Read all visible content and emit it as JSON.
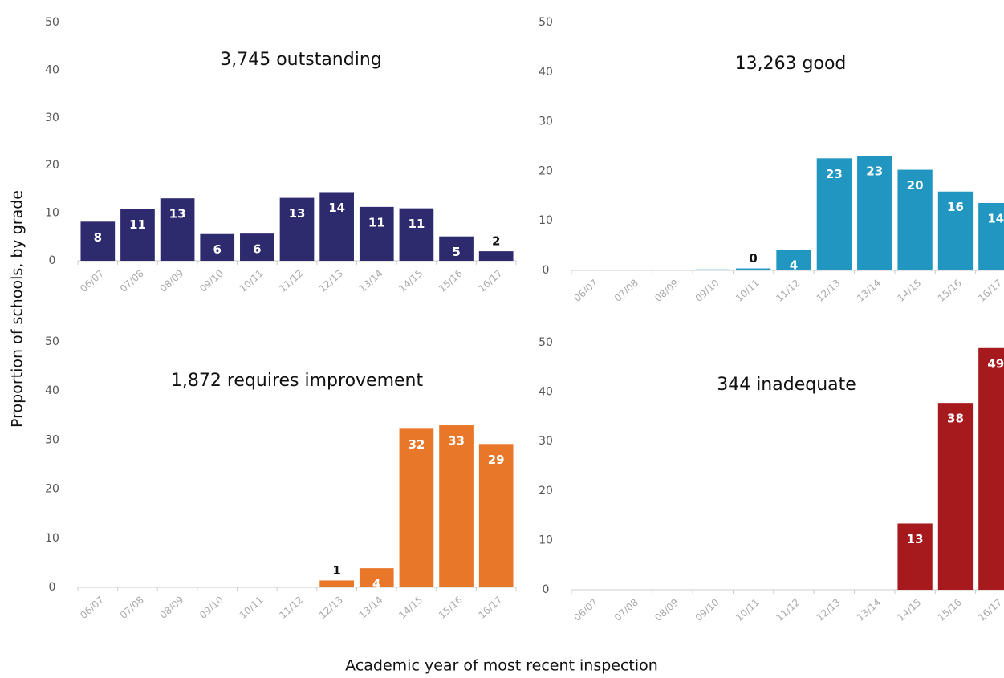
{
  "ylabel": "Proportion of schools, by grade",
  "xlabel": "Academic year of most recent inspection",
  "chart_data": [
    {
      "type": "bar",
      "title": "3,745 outstanding",
      "color": "#2d2a6e",
      "categories": [
        "06/07",
        "07/08",
        "08/09",
        "09/10",
        "10/11",
        "11/12",
        "12/13",
        "13/14",
        "14/15",
        "15/16",
        "16/17"
      ],
      "values": [
        8.2,
        10.9,
        13.1,
        5.6,
        5.7,
        13.2,
        14.4,
        11.3,
        11.0,
        5.1,
        2.0
      ],
      "value_labels": [
        "8",
        "11",
        "13",
        "6",
        "6",
        "13",
        "14",
        "11",
        "11",
        "5",
        "2"
      ],
      "ylim": [
        0,
        50
      ],
      "yticks": [
        0,
        10,
        20,
        30,
        40,
        50
      ],
      "grid": false
    },
    {
      "type": "bar",
      "title": "13,263 good",
      "color": "#2196c0",
      "categories": [
        "06/07",
        "07/08",
        "08/09",
        "09/10",
        "10/11",
        "11/12",
        "12/13",
        "13/14",
        "14/15",
        "15/16",
        "16/17"
      ],
      "values": [
        0,
        0,
        0,
        0.2,
        0.4,
        4.2,
        22.6,
        23.1,
        20.3,
        15.9,
        13.6
      ],
      "value_labels": [
        null,
        null,
        null,
        null,
        "0",
        "4",
        "23",
        "23",
        "20",
        "16",
        "14"
      ],
      "ylim": [
        0,
        50
      ],
      "yticks": [
        0,
        10,
        20,
        30,
        40,
        50
      ],
      "grid": false
    },
    {
      "type": "bar",
      "title": "1,872 requires improvement",
      "color": "#e8772a",
      "categories": [
        "06/07",
        "07/08",
        "08/09",
        "09/10",
        "10/11",
        "11/12",
        "12/13",
        "13/14",
        "14/15",
        "15/16",
        "16/17"
      ],
      "values": [
        0,
        0,
        0,
        0,
        0,
        0,
        1.4,
        3.9,
        32.3,
        33.0,
        29.2
      ],
      "value_labels": [
        null,
        null,
        null,
        null,
        null,
        null,
        "1",
        "4",
        "32",
        "33",
        "29"
      ],
      "ylim": [
        0,
        50
      ],
      "yticks": [
        0,
        10,
        20,
        30,
        40,
        50
      ],
      "grid": false
    },
    {
      "type": "bar",
      "title": "344 inadequate",
      "color": "#a6191c",
      "categories": [
        "06/07",
        "07/08",
        "08/09",
        "09/10",
        "10/11",
        "11/12",
        "12/13",
        "13/14",
        "14/15",
        "15/16",
        "16/17"
      ],
      "values": [
        0,
        0,
        0,
        0,
        0,
        0,
        0,
        0,
        13.4,
        37.8,
        48.9
      ],
      "value_labels": [
        null,
        null,
        null,
        null,
        null,
        null,
        null,
        null,
        "13",
        "38",
        "49"
      ],
      "ylim": [
        0,
        50
      ],
      "yticks": [
        0,
        10,
        20,
        30,
        40,
        50
      ],
      "grid": false
    }
  ]
}
